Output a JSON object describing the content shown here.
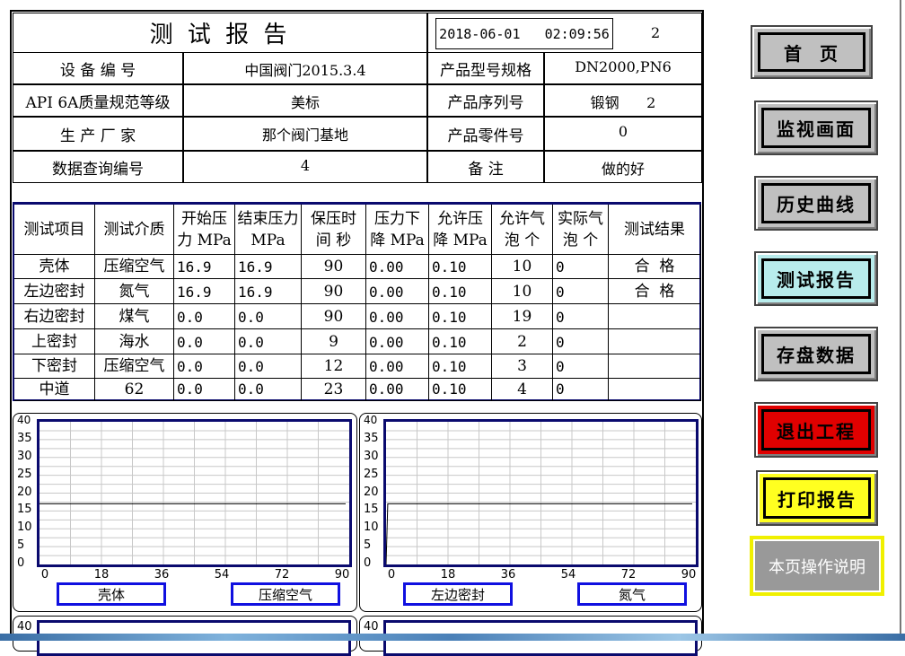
{
  "header": {
    "title": "测 试 报 告",
    "datetime": "2018-06-01   02:09:56",
    "page_number": "2"
  },
  "info": [
    {
      "label": "设 备 编 号",
      "value": "中国阀门2015.3.4",
      "label2": "产品型号规格",
      "value2": "DN2000,PN6"
    },
    {
      "label": "API 6A质量规范等级",
      "value": "美标",
      "label2": "产品序列号",
      "value2": "锻钢      2"
    },
    {
      "label": "生 产 厂 家",
      "value": "那个阀门基地",
      "label2": "产品零件号",
      "value2": "0"
    },
    {
      "label": "数据查询编号",
      "value": "4",
      "label2": "备 注",
      "value2": "做的好"
    }
  ],
  "table": {
    "headers": [
      "测试项目",
      "测试介质",
      "开始压力 MPa",
      "结束压力 MPa",
      "保压时间 秒",
      "压力下降 MPa",
      "允许压降 MPa",
      "允许气泡 个",
      "实际气泡 个",
      "测试结果"
    ],
    "rows": [
      [
        "壳体",
        "压缩空气",
        "16.9",
        "16.9",
        "90",
        "0.00",
        "0.10",
        "10",
        "0",
        "合  格"
      ],
      [
        "左边密封",
        "氮气",
        "16.9",
        "16.9",
        "90",
        "0.00",
        "0.10",
        "10",
        "0",
        "合  格"
      ],
      [
        "右边密封",
        "煤气",
        "0.0",
        "0.0",
        "90",
        "0.00",
        "0.10",
        "19",
        "0",
        ""
      ],
      [
        "上密封",
        "海水",
        "0.0",
        "0.0",
        "9",
        "0.00",
        "0.10",
        "2",
        "0",
        ""
      ],
      [
        "下密封",
        "压缩空气",
        "0.0",
        "0.0",
        "12",
        "0.00",
        "0.10",
        "3",
        "0",
        ""
      ],
      [
        "中道",
        "62",
        "0.0",
        "0.0",
        "23",
        "0.00",
        "0.10",
        "4",
        "0",
        ""
      ]
    ]
  },
  "chart_data": [
    {
      "type": "line",
      "ylim": [
        0,
        40
      ],
      "xlim": [
        0,
        90
      ],
      "yticks": [
        "0",
        "5",
        "10",
        "15",
        "20",
        "25",
        "30",
        "35",
        "40"
      ],
      "xticks": [
        "0",
        "18",
        "36",
        "54",
        "72",
        "90"
      ],
      "grid": true,
      "x": [
        0,
        90
      ],
      "y": [
        17,
        17
      ],
      "label1": "壳体",
      "label2": "压缩空气"
    },
    {
      "type": "line",
      "ylim": [
        0,
        40
      ],
      "xlim": [
        0,
        90
      ],
      "yticks": [
        "0",
        "5",
        "10",
        "15",
        "20",
        "25",
        "30",
        "35",
        "40"
      ],
      "xticks": [
        "0",
        "18",
        "36",
        "54",
        "72",
        "90"
      ],
      "grid": true,
      "x": [
        0,
        0.5,
        90
      ],
      "y": [
        0,
        17,
        17
      ],
      "label1": "左边密封",
      "label2": "氮气"
    }
  ],
  "bottom_charts": {
    "ytop": "40"
  },
  "nav": [
    {
      "label": "首  页",
      "bg": "#c0c0c0"
    },
    {
      "label": "监视画面",
      "bg": "#c0c0c0"
    },
    {
      "label": "历史曲线",
      "bg": "#c0c0c0"
    },
    {
      "label": "测试报告",
      "bg": "#b8ecec"
    },
    {
      "label": "存盘数据",
      "bg": "#c0c0c0"
    },
    {
      "label": "退出工程",
      "bg": "#e00000"
    },
    {
      "label": "打印报告",
      "bg": "#ffff20"
    }
  ],
  "help_button": "本页操作说明"
}
